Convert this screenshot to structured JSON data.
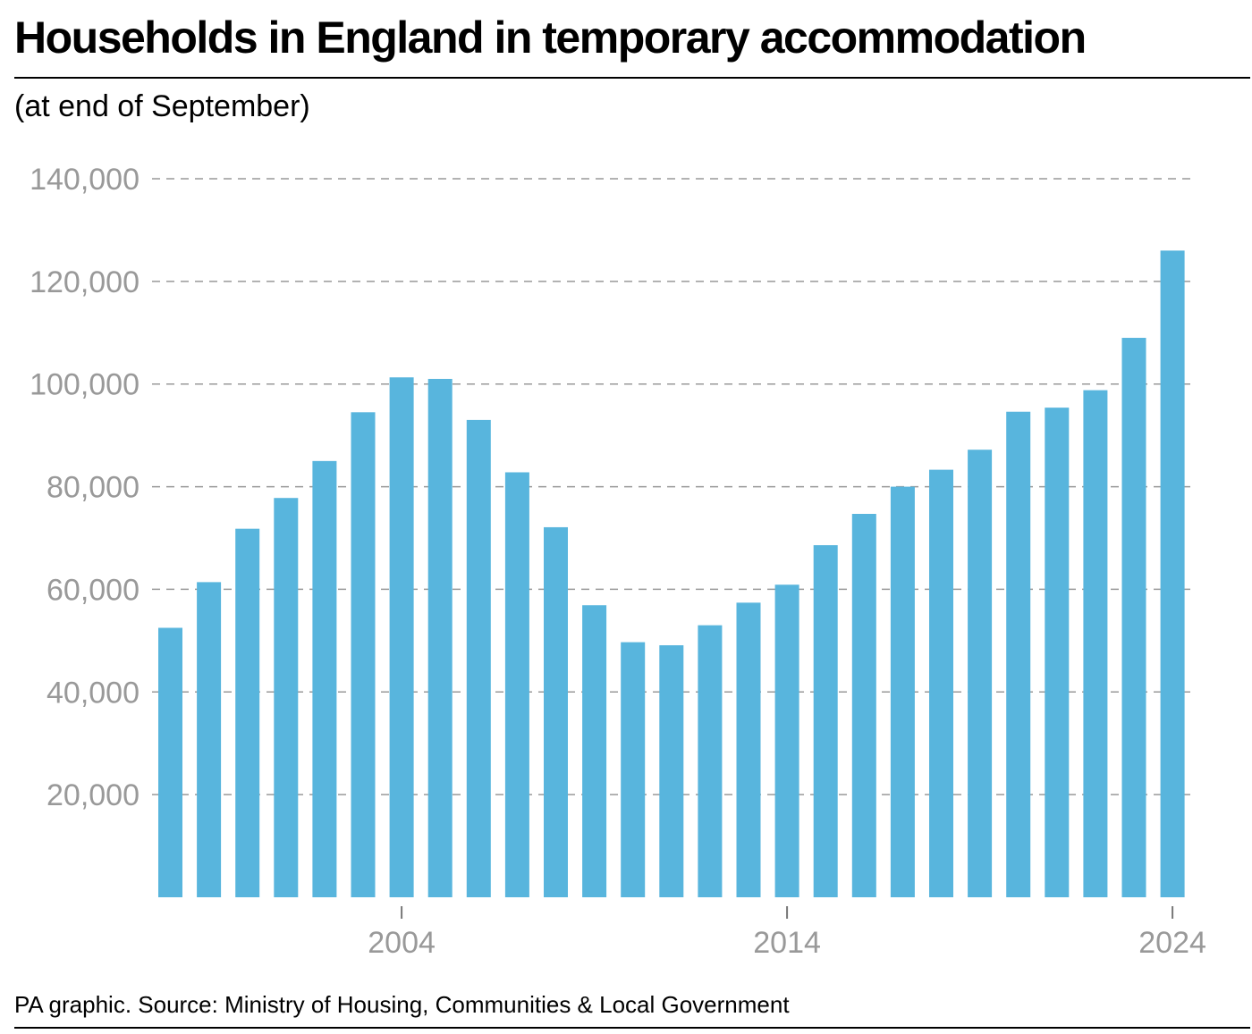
{
  "chart_data": {
    "type": "bar",
    "title": "Households in England in temporary accommodation",
    "subtitle": "(at end of September)",
    "source": "PA graphic. Source: Ministry of Housing, Communities & Local Government",
    "x": [
      1998,
      1999,
      2000,
      2001,
      2002,
      2003,
      2004,
      2005,
      2006,
      2007,
      2008,
      2009,
      2010,
      2011,
      2012,
      2013,
      2014,
      2015,
      2016,
      2017,
      2018,
      2019,
      2020,
      2021,
      2022,
      2023,
      2024
    ],
    "values": [
      52500,
      61400,
      71800,
      77800,
      85000,
      94500,
      101300,
      101000,
      93000,
      82800,
      72100,
      56900,
      49700,
      49100,
      53000,
      57400,
      60900,
      68600,
      74700,
      80000,
      83300,
      87200,
      94600,
      95400,
      98800,
      109000,
      126000
    ],
    "x_ticks": [
      "2004",
      "2014",
      "2024"
    ],
    "y_ticks": [
      "20,000",
      "40,000",
      "60,000",
      "80,000",
      "100,000",
      "120,000",
      "140,000"
    ],
    "ylim": [
      0,
      140000
    ],
    "bar_color": "#58b5dd",
    "grid_color": "#999999",
    "axis_label_color": "#999999",
    "grid": true,
    "legend": "none"
  }
}
